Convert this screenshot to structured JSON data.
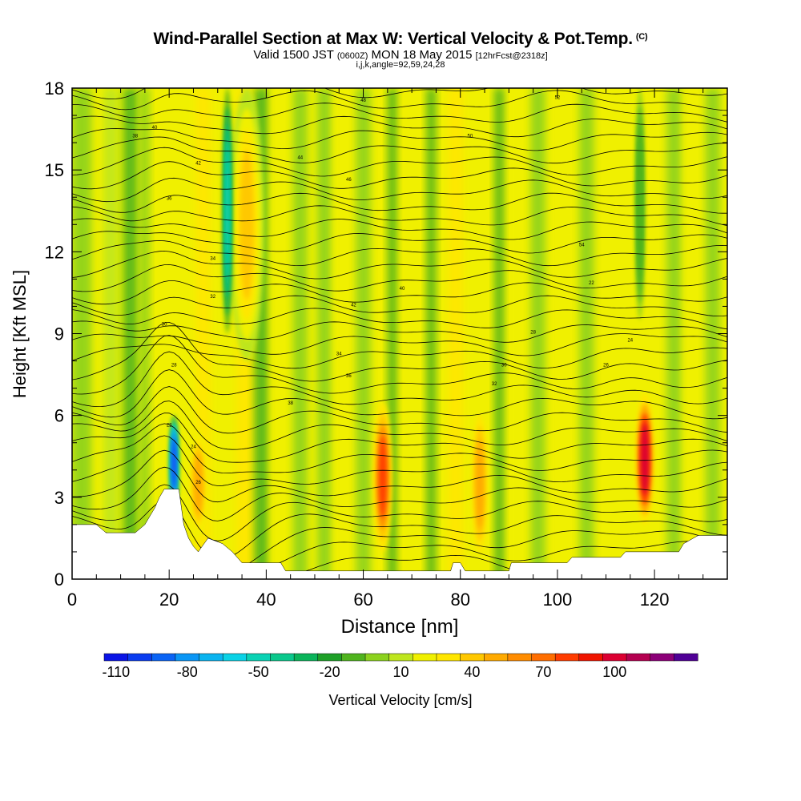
{
  "title": {
    "main": "Wind-Parallel Section at Max W: Vertical Velocity & Pot.Temp.",
    "copyright": "(C)",
    "valid_prefix": "Valid 1500 JST",
    "valid_utc": "(0600Z)",
    "valid_date": "MON 18 May 2015",
    "forecast": "[12hrFcst@2318z]",
    "params": "i,j,k,angle=92,59,24,28"
  },
  "chart_data": {
    "type": "heatmap",
    "xlabel": "Distance [nm]",
    "ylabel": "Height [Kft MSL]",
    "xlim": [
      0,
      135
    ],
    "ylim": [
      0,
      18
    ],
    "x_ticks": [
      0,
      20,
      40,
      60,
      80,
      100,
      120
    ],
    "y_ticks": [
      0,
      3,
      6,
      9,
      12,
      15,
      18
    ],
    "colorbar": {
      "label": "Vertical Velocity [cm/s]",
      "tick_labels": [
        "-110",
        "-80",
        "-50",
        "-20",
        "10",
        "40",
        "70",
        "100"
      ],
      "levels": [
        -110,
        -100,
        -90,
        -80,
        -70,
        -60,
        -50,
        -40,
        -30,
        -20,
        -10,
        0,
        10,
        20,
        30,
        40,
        50,
        60,
        70,
        80,
        90,
        100,
        110,
        120
      ],
      "colors": [
        "#0a14e6",
        "#0a3cf0",
        "#0a64f5",
        "#0a96f5",
        "#0ab4f0",
        "#0ad2e6",
        "#0ad2b4",
        "#0ac88c",
        "#0ab45a",
        "#1ea028",
        "#50b41e",
        "#8cd21e",
        "#bee61e",
        "#f0f000",
        "#ffe600",
        "#ffc800",
        "#ffaa00",
        "#ff8c00",
        "#ff6e00",
        "#ff3c00",
        "#f01400",
        "#dc0032",
        "#b40050",
        "#8c0078",
        "#500096"
      ]
    },
    "updrafts": [
      {
        "x": 64,
        "zmin": 1.0,
        "zmax": 6.5,
        "peak_cm_s": 70
      },
      {
        "x": 84,
        "zmin": 0.5,
        "zmax": 6.5,
        "peak_cm_s": 40
      },
      {
        "x": 118,
        "zmin": 2.0,
        "zmax": 6.8,
        "peak_cm_s": 90
      },
      {
        "x": 26,
        "zmin": 1.5,
        "zmax": 5.5,
        "peak_cm_s": 40
      },
      {
        "x": 36,
        "zmin": 8.0,
        "zmax": 18.0,
        "peak_cm_s": 30
      }
    ],
    "downdrafts": [
      {
        "x": 21,
        "zmin": 2.5,
        "zmax": 6.0,
        "peak_cm_s": -110
      },
      {
        "x": 32,
        "zmin": 9.0,
        "zmax": 18.0,
        "peak_cm_s": -60
      },
      {
        "x": 117,
        "zmin": 9.5,
        "zmax": 18.0,
        "peak_cm_s": -20
      }
    ],
    "terrain": [
      [
        0,
        2
      ],
      [
        5,
        2
      ],
      [
        7,
        1.7
      ],
      [
        13,
        1.7
      ],
      [
        15,
        2
      ],
      [
        16,
        2.3
      ],
      [
        17,
        2.6
      ],
      [
        18,
        3
      ],
      [
        19,
        3.3
      ],
      [
        22,
        3.3
      ],
      [
        23,
        2
      ],
      [
        24,
        1.5
      ],
      [
        25,
        1.2
      ],
      [
        26,
        1
      ],
      [
        28,
        1.5
      ],
      [
        31,
        1.3
      ],
      [
        33,
        1
      ],
      [
        35,
        0.6
      ],
      [
        43,
        0.6
      ],
      [
        44,
        0.3
      ],
      [
        78,
        0.3
      ],
      [
        78.5,
        0.6
      ],
      [
        80,
        0.6
      ],
      [
        81,
        0.3
      ],
      [
        90,
        0.3
      ],
      [
        90.5,
        0.6
      ],
      [
        102,
        0.6
      ],
      [
        103,
        0.8
      ],
      [
        113,
        0.8
      ],
      [
        114,
        1
      ],
      [
        125,
        1
      ],
      [
        126,
        1.3
      ],
      [
        129,
        1.6
      ],
      [
        135,
        1.6
      ]
    ],
    "isentropes_count": 38,
    "isentrope_labels": [
      "22",
      "24",
      "26",
      "28",
      "30",
      "32",
      "34",
      "36",
      "38",
      "40",
      "42",
      "44",
      "46",
      "48",
      "50",
      "52",
      "54"
    ]
  }
}
